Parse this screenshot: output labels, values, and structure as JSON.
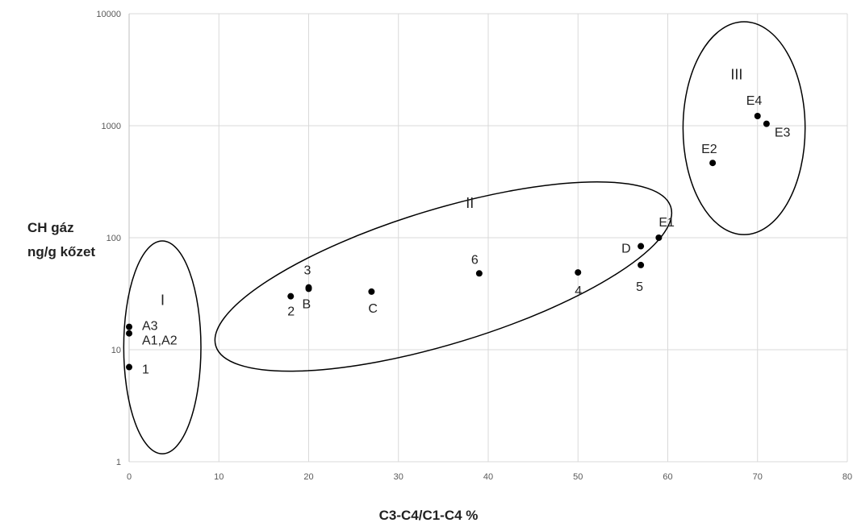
{
  "chart_data": {
    "type": "scatter",
    "title": "",
    "xlabel": "C3-C4/C1-C4 %",
    "ylabel_lines": [
      "CH gáz",
      "ng/g kőzet"
    ],
    "xlim": [
      0,
      80
    ],
    "ylim": [
      1,
      10000
    ],
    "yscale": "log",
    "grid": true,
    "x_ticks": [
      "0",
      "10",
      "20",
      "30",
      "40",
      "50",
      "60",
      "70",
      "80"
    ],
    "y_ticks": [
      "1",
      "10",
      "100",
      "1000",
      "10000"
    ],
    "points": [
      {
        "label": "A3",
        "x": 0,
        "y": 16
      },
      {
        "label": "A1,A2",
        "x": 0,
        "y": 14
      },
      {
        "label": "1",
        "x": 0,
        "y": 7
      },
      {
        "label": "2",
        "x": 18,
        "y": 30
      },
      {
        "label": "3",
        "x": 20,
        "y": 36
      },
      {
        "label": "B",
        "x": 20,
        "y": 35
      },
      {
        "label": "C",
        "x": 27,
        "y": 33
      },
      {
        "label": "6",
        "x": 39,
        "y": 48
      },
      {
        "label": "4",
        "x": 50,
        "y": 49
      },
      {
        "label": "D",
        "x": 57,
        "y": 84
      },
      {
        "label": "5",
        "x": 57,
        "y": 57
      },
      {
        "label": "E1",
        "x": 59,
        "y": 100
      },
      {
        "label": "E2",
        "x": 65,
        "y": 465
      },
      {
        "label": "E4",
        "x": 70,
        "y": 1220
      },
      {
        "label": "E3",
        "x": 71,
        "y": 1040
      }
    ],
    "groups": [
      {
        "label": "I"
      },
      {
        "label": "II"
      },
      {
        "label": "III"
      }
    ]
  }
}
